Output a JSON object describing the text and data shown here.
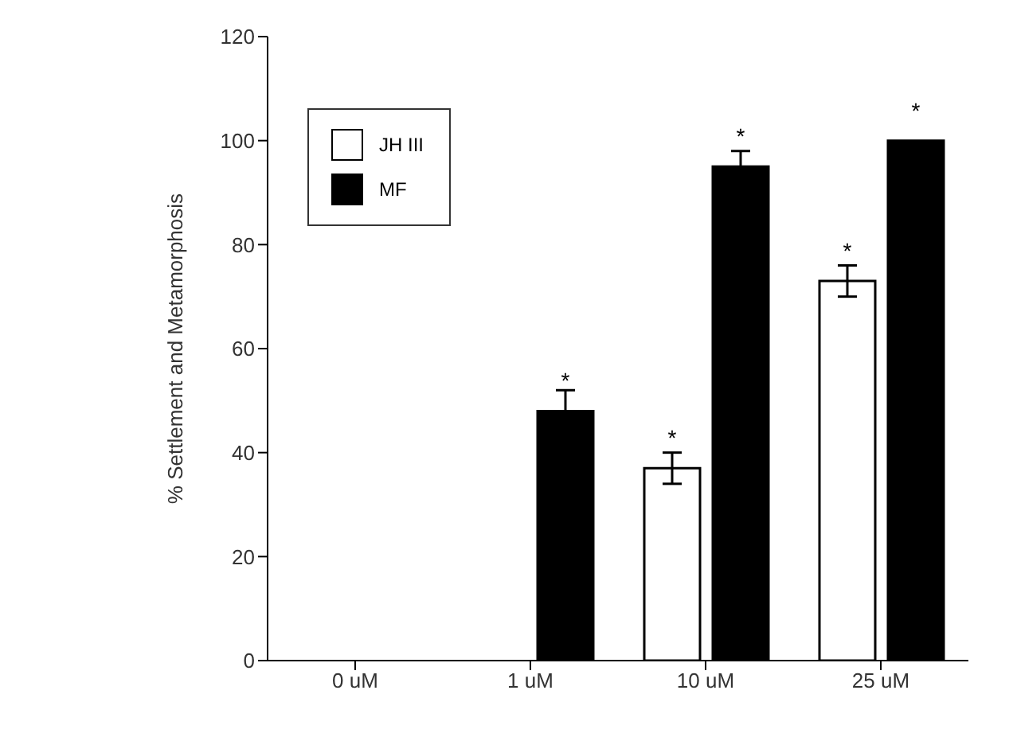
{
  "chart_data": {
    "type": "bar",
    "ylabel": "% Settlement and Metamorphosis",
    "categories": [
      "0 uM",
      "1 uM",
      "10 uM",
      "25 uM"
    ],
    "ylim": [
      0,
      120
    ],
    "yticks": [
      0,
      20,
      40,
      60,
      80,
      100,
      120
    ],
    "legend": "top left",
    "series": [
      {
        "name": "JH III",
        "color": "#ffffff",
        "values": [
          0,
          0,
          37,
          73
        ],
        "errors": [
          null,
          null,
          3,
          3
        ],
        "value_labels": [
          null,
          null,
          "*",
          "*"
        ]
      },
      {
        "name": "MF",
        "color": "#000000",
        "values": [
          0,
          48,
          95,
          100
        ],
        "errors": [
          null,
          4,
          3,
          null
        ],
        "value_labels": [
          null,
          "*",
          "*",
          "*"
        ]
      }
    ]
  }
}
